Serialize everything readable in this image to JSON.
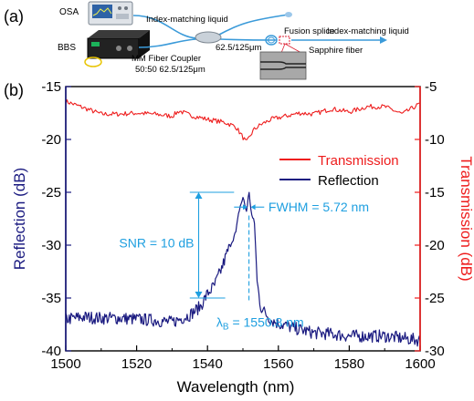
{
  "panel_a": {
    "label": "(a)",
    "osa": "OSA",
    "bbs": "BBS",
    "index_matching_1": "Index-matching liquid",
    "coupler": "MM Fiber Coupler",
    "coupler_spec": "50:50  62.5/125μm",
    "fiber_spec": "62.5/125μm",
    "fusion": "Fusion splice",
    "sapphire": "Sapphire fiber",
    "index_matching_2": "Index-matching liquid"
  },
  "panel_b": {
    "label": "(b)"
  },
  "colors": {
    "transmission": "#ee1c1c",
    "reflection": "#1a1a80",
    "annotation": "#1e9fe0"
  },
  "chart_data": {
    "type": "line",
    "title": "",
    "xlabel": "Wavelength (nm)",
    "ylabel": "Reflection (dB)",
    "y2label": "Transmission (dB)",
    "xlim": [
      1500,
      1600
    ],
    "ylim": [
      -40,
      -15
    ],
    "y2lim": [
      -30,
      -5
    ],
    "xticks": [
      1500,
      1520,
      1540,
      1560,
      1580,
      1600
    ],
    "yticks": [
      -40,
      -35,
      -30,
      -25,
      -20,
      -15
    ],
    "y2ticks": [
      -30,
      -25,
      -20,
      -15,
      -10,
      -5
    ],
    "legend_position": "right",
    "grid": false,
    "series": [
      {
        "name": "Transmission",
        "axis": "right",
        "x": [
          1500,
          1505,
          1510,
          1515,
          1520,
          1525,
          1530,
          1532,
          1535,
          1540,
          1545,
          1548,
          1550,
          1551,
          1552,
          1553,
          1555,
          1558,
          1562,
          1566,
          1570,
          1575,
          1580,
          1585,
          1590,
          1595,
          1600
        ],
        "y": [
          -6.4,
          -7.0,
          -7.6,
          -7.6,
          -7.5,
          -7.6,
          -7.8,
          -7.3,
          -7.7,
          -8.1,
          -8.4,
          -8.8,
          -9.8,
          -10.3,
          -9.7,
          -9.1,
          -8.6,
          -8.1,
          -7.8,
          -7.5,
          -7.6,
          -7.1,
          -7.4,
          -6.9,
          -6.9,
          -7.6,
          -6.6
        ]
      },
      {
        "name": "Reflection",
        "axis": "left",
        "x": [
          1500,
          1505,
          1510,
          1515,
          1520,
          1525,
          1530,
          1535,
          1538,
          1540,
          1542,
          1544,
          1546,
          1548,
          1549,
          1550,
          1551,
          1551.7,
          1552.5,
          1553.3,
          1554,
          1555,
          1556,
          1558,
          1560,
          1565,
          1570,
          1575,
          1580,
          1585,
          1590,
          1595,
          1600
        ],
        "y": [
          -37.0,
          -36.8,
          -36.9,
          -36.9,
          -37.0,
          -37.1,
          -37.3,
          -36.6,
          -35.8,
          -34.6,
          -33.8,
          -32.2,
          -30.3,
          -28.8,
          -26.6,
          -25.5,
          -26.8,
          -25.0,
          -27.2,
          -28.0,
          -33.5,
          -35.8,
          -36.3,
          -37.1,
          -37.4,
          -37.9,
          -38.3,
          -38.4,
          -38.6,
          -38.6,
          -38.6,
          -38.8,
          -39.0
        ]
      }
    ],
    "annotations": {
      "snr": "SNR = 10 dB",
      "fwhm": "FWHM = 5.72 nm",
      "lambda_prefix": "λ",
      "lambda_sub": "B",
      "lambda_value": " = 1550.8 nm",
      "snr_range_db": [
        -35,
        -25
      ],
      "center_nm": 1551.7
    }
  }
}
